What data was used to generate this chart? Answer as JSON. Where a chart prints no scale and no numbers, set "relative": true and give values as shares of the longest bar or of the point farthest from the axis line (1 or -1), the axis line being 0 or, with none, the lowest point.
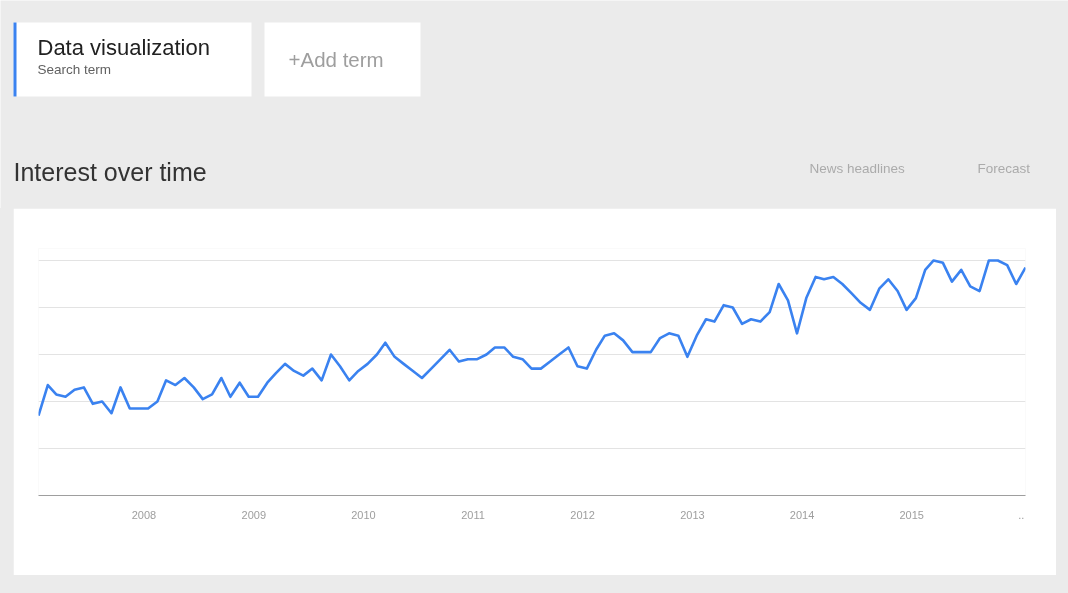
{
  "chart_data": {
    "type": "line",
    "title": "Interest over time",
    "relative": true,
    "grid": "y",
    "legend": "top left",
    "line_style": "solid",
    "annotations": [
      "Search term",
      "+Add term",
      "News headlines",
      "Forecast"
    ],
    "xlim": [
      "2007-01-15",
      "2016-01-15"
    ],
    "xticks": [
      {
        "value": "2008-01-01",
        "label": "2008"
      },
      {
        "value": "2009-01-01",
        "label": "2009"
      },
      {
        "value": "2010-01-01",
        "label": "2010"
      },
      {
        "value": "2011-01-01",
        "label": "2011"
      },
      {
        "value": "2012-01-01",
        "label": "2012"
      },
      {
        "value": "2013-01-01",
        "label": "2013"
      },
      {
        "value": "2014-01-01",
        "label": "2014"
      },
      {
        "value": "2015-01-01",
        "label": "2015"
      },
      {
        "value": "2016-01-01",
        "label": ".."
      }
    ],
    "x": [
      "2007-01-15",
      "2007-02-15",
      "2007-03-15",
      "2007-04-15",
      "2007-05-15",
      "2007-06-15",
      "2007-07-15",
      "2007-08-15",
      "2007-09-15",
      "2007-10-15",
      "2007-11-15",
      "2007-12-15",
      "2008-01-15",
      "2008-02-15",
      "2008-03-15",
      "2008-04-15",
      "2008-05-15",
      "2008-06-15",
      "2008-07-15",
      "2008-08-15",
      "2008-09-15",
      "2008-10-15",
      "2008-11-15",
      "2008-12-15",
      "2009-01-15",
      "2009-02-15",
      "2009-03-15",
      "2009-04-15",
      "2009-05-15",
      "2009-06-15",
      "2009-07-15",
      "2009-08-15",
      "2009-09-15",
      "2009-10-15",
      "2009-11-15",
      "2009-12-15",
      "2010-01-15",
      "2010-02-15",
      "2010-03-15",
      "2010-04-15",
      "2010-05-15",
      "2010-06-15",
      "2010-07-15",
      "2010-08-15",
      "2010-09-15",
      "2010-10-15",
      "2010-11-15",
      "2010-12-15",
      "2011-01-15",
      "2011-02-15",
      "2011-03-15",
      "2011-04-15",
      "2011-05-15",
      "2011-06-15",
      "2011-07-15",
      "2011-08-15",
      "2011-09-15",
      "2011-10-15",
      "2011-11-15",
      "2011-12-15",
      "2012-01-15",
      "2012-02-15",
      "2012-03-15",
      "2012-04-15",
      "2012-05-15",
      "2012-06-15",
      "2012-07-15",
      "2012-08-15",
      "2012-09-15",
      "2012-10-15",
      "2012-11-15",
      "2012-12-15",
      "2013-01-15",
      "2013-02-15",
      "2013-03-15",
      "2013-04-15",
      "2013-05-15",
      "2013-06-15",
      "2013-07-15",
      "2013-08-15",
      "2013-09-15",
      "2013-10-15",
      "2013-11-15",
      "2013-12-15",
      "2014-01-15",
      "2014-02-15",
      "2014-03-15",
      "2014-04-15",
      "2014-05-15",
      "2014-06-15",
      "2014-07-15",
      "2014-08-15",
      "2014-09-15",
      "2014-10-15",
      "2014-11-15",
      "2014-12-15",
      "2015-01-15",
      "2015-02-15",
      "2015-03-15",
      "2015-04-15",
      "2015-05-15",
      "2015-06-15",
      "2015-07-15",
      "2015-08-15",
      "2015-09-15",
      "2015-10-15",
      "2015-11-15",
      "2015-12-15",
      "2016-01-15"
    ],
    "series": [
      {
        "name": "Data visualization",
        "color": "#3a82f0",
        "values": [
          0.34,
          0.47,
          0.43,
          0.42,
          0.45,
          0.46,
          0.39,
          0.4,
          0.35,
          0.46,
          0.37,
          0.37,
          0.37,
          0.4,
          0.49,
          0.47,
          0.5,
          0.46,
          0.41,
          0.43,
          0.5,
          0.42,
          0.48,
          0.42,
          0.42,
          0.48,
          0.52,
          0.56,
          0.53,
          0.51,
          0.54,
          0.49,
          0.6,
          0.55,
          0.49,
          0.53,
          0.56,
          0.6,
          0.65,
          0.59,
          0.56,
          0.53,
          0.5,
          0.54,
          0.58,
          0.62,
          0.57,
          0.58,
          0.58,
          0.6,
          0.63,
          0.63,
          0.59,
          0.58,
          0.54,
          0.54,
          0.57,
          0.6,
          0.63,
          0.55,
          0.54,
          0.62,
          0.68,
          0.69,
          0.66,
          0.61,
          0.61,
          0.61,
          0.67,
          0.69,
          0.68,
          0.59,
          0.68,
          0.75,
          0.74,
          0.81,
          0.8,
          0.73,
          0.75,
          0.74,
          0.78,
          0.9,
          0.83,
          0.69,
          0.84,
          0.93,
          0.92,
          0.93,
          0.9,
          0.86,
          0.82,
          0.79,
          0.88,
          0.92,
          0.87,
          0.79,
          0.84,
          0.96,
          1.0,
          0.99,
          0.91,
          0.96,
          0.89,
          0.87,
          1.0,
          1.0,
          0.98,
          0.9,
          0.97
        ]
      }
    ]
  }
}
